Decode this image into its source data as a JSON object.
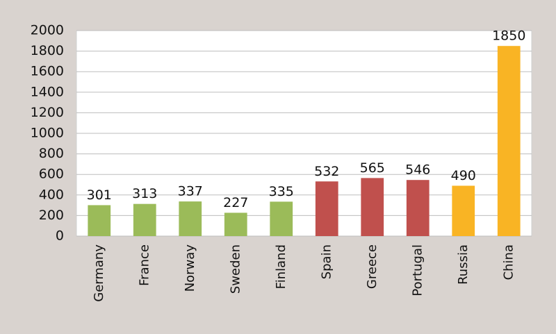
{
  "chart_data": {
    "type": "bar",
    "categories": [
      "Germany",
      "France",
      "Norway",
      "Sweden",
      "Finland",
      "Spain",
      "Greece",
      "Portugal",
      "Russia",
      "China"
    ],
    "values": [
      301,
      313,
      337,
      227,
      335,
      532,
      565,
      546,
      490,
      1850
    ],
    "colors": [
      "#9bbb59",
      "#9bbb59",
      "#9bbb59",
      "#9bbb59",
      "#9bbb59",
      "#c0504d",
      "#c0504d",
      "#c0504d",
      "#f9b424",
      "#f9b424"
    ],
    "ylim": [
      0,
      2000
    ],
    "yticks": [
      0,
      200,
      400,
      600,
      800,
      1000,
      1200,
      1400,
      1600,
      1800,
      2000
    ],
    "grid": true
  }
}
